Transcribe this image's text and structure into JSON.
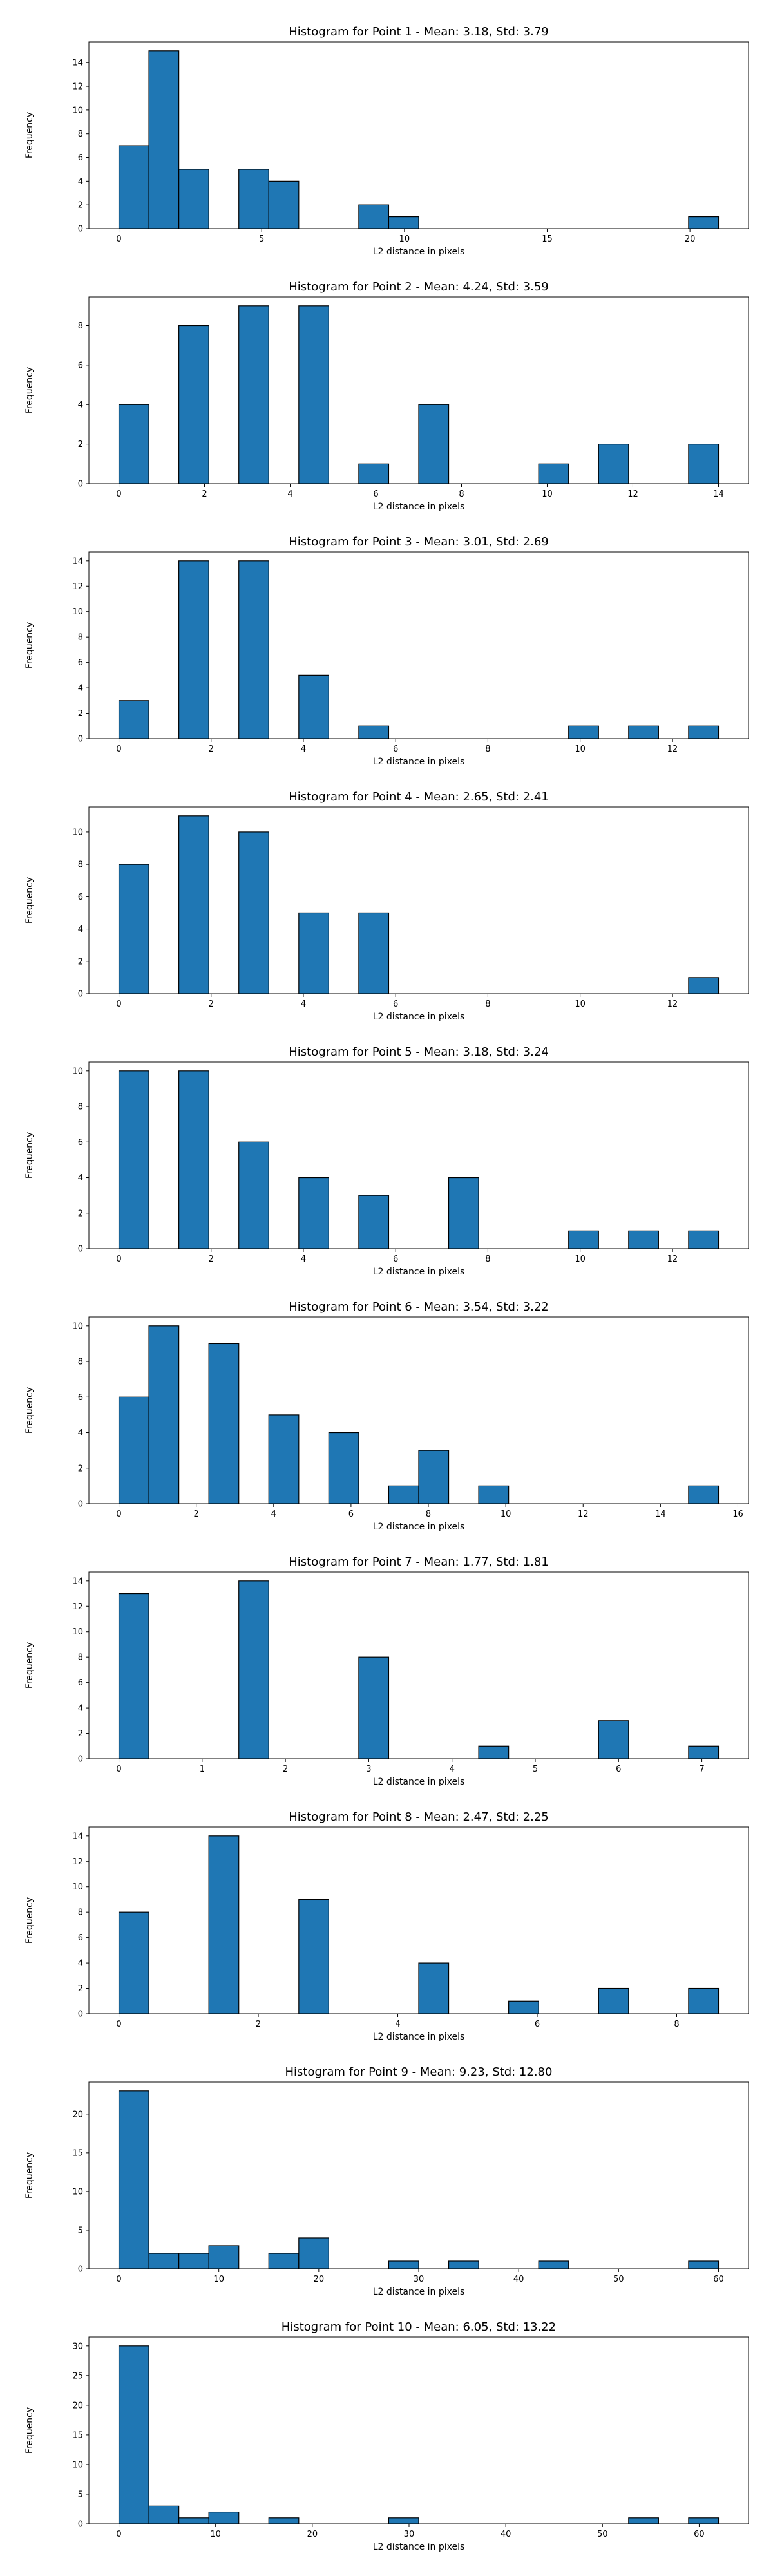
{
  "chart_data": [
    {
      "type": "bar",
      "title": "Histogram for Point 1 - Mean: 3.18, Std: 3.79",
      "xlabel": "L2 distance in pixels",
      "ylabel": "Frequency",
      "xlim": [
        -1.05,
        22.05
      ],
      "ylim": [
        0,
        15.75
      ],
      "xticks": [
        0,
        5,
        10,
        15,
        20
      ],
      "yticks": [
        0,
        2,
        4,
        6,
        8,
        10,
        12,
        14
      ],
      "bins": [
        {
          "x0": 0.0,
          "x1": 1.05,
          "count": 7
        },
        {
          "x0": 1.05,
          "x1": 2.1,
          "count": 15
        },
        {
          "x0": 2.1,
          "x1": 3.15,
          "count": 5
        },
        {
          "x0": 4.2,
          "x1": 5.25,
          "count": 5
        },
        {
          "x0": 5.25,
          "x1": 6.3,
          "count": 4
        },
        {
          "x0": 8.4,
          "x1": 9.45,
          "count": 2
        },
        {
          "x0": 9.45,
          "x1": 10.5,
          "count": 1
        },
        {
          "x0": 19.95,
          "x1": 21.0,
          "count": 1
        }
      ]
    },
    {
      "type": "bar",
      "title": "Histogram for Point 2 - Mean: 4.24, Std: 3.59",
      "xlabel": "L2 distance in pixels",
      "ylabel": "Frequency",
      "xlim": [
        -0.7,
        14.7
      ],
      "ylim": [
        0,
        9.45
      ],
      "xticks": [
        0,
        2,
        4,
        6,
        8,
        10,
        12,
        14
      ],
      "yticks": [
        0,
        2,
        4,
        6,
        8
      ],
      "bins": [
        {
          "x0": 0.0,
          "x1": 0.7,
          "count": 4
        },
        {
          "x0": 1.4,
          "x1": 2.1,
          "count": 8
        },
        {
          "x0": 2.8,
          "x1": 3.5,
          "count": 9
        },
        {
          "x0": 4.2,
          "x1": 4.9,
          "count": 9
        },
        {
          "x0": 5.6,
          "x1": 6.3,
          "count": 1
        },
        {
          "x0": 7.0,
          "x1": 7.7,
          "count": 4
        },
        {
          "x0": 9.8,
          "x1": 10.5,
          "count": 1
        },
        {
          "x0": 11.2,
          "x1": 11.9,
          "count": 2
        },
        {
          "x0": 13.3,
          "x1": 14.0,
          "count": 2
        }
      ]
    },
    {
      "type": "bar",
      "title": "Histogram for Point 3 - Mean: 3.01, Std: 2.69",
      "xlabel": "L2 distance in pixels",
      "ylabel": "Frequency",
      "xlim": [
        -0.65,
        13.65
      ],
      "ylim": [
        0,
        14.7
      ],
      "xticks": [
        0,
        2,
        4,
        6,
        8,
        10,
        12
      ],
      "yticks": [
        0,
        2,
        4,
        6,
        8,
        10,
        12,
        14
      ],
      "bins": [
        {
          "x0": 0.0,
          "x1": 0.65,
          "count": 3
        },
        {
          "x0": 1.3,
          "x1": 1.95,
          "count": 14
        },
        {
          "x0": 2.6,
          "x1": 3.25,
          "count": 14
        },
        {
          "x0": 3.9,
          "x1": 4.55,
          "count": 5
        },
        {
          "x0": 5.2,
          "x1": 5.85,
          "count": 1
        },
        {
          "x0": 9.75,
          "x1": 10.4,
          "count": 1
        },
        {
          "x0": 11.05,
          "x1": 11.7,
          "count": 1
        },
        {
          "x0": 12.35,
          "x1": 13.0,
          "count": 1
        }
      ]
    },
    {
      "type": "bar",
      "title": "Histogram for Point 4 - Mean: 2.65, Std: 2.41",
      "xlabel": "L2 distance in pixels",
      "ylabel": "Frequency",
      "xlim": [
        -0.65,
        13.65
      ],
      "ylim": [
        0,
        11.55
      ],
      "xticks": [
        0,
        2,
        4,
        6,
        8,
        10,
        12
      ],
      "yticks": [
        0,
        2,
        4,
        6,
        8,
        10
      ],
      "bins": [
        {
          "x0": 0.0,
          "x1": 0.65,
          "count": 8
        },
        {
          "x0": 1.3,
          "x1": 1.95,
          "count": 11
        },
        {
          "x0": 2.6,
          "x1": 3.25,
          "count": 10
        },
        {
          "x0": 3.9,
          "x1": 4.55,
          "count": 5
        },
        {
          "x0": 5.2,
          "x1": 5.85,
          "count": 5
        },
        {
          "x0": 12.35,
          "x1": 13.0,
          "count": 1
        }
      ]
    },
    {
      "type": "bar",
      "title": "Histogram for Point 5 - Mean: 3.18, Std: 3.24",
      "xlabel": "L2 distance in pixels",
      "ylabel": "Frequency",
      "xlim": [
        -0.65,
        13.65
      ],
      "ylim": [
        0,
        10.5
      ],
      "xticks": [
        0,
        2,
        4,
        6,
        8,
        10,
        12
      ],
      "yticks": [
        0,
        2,
        4,
        6,
        8,
        10
      ],
      "bins": [
        {
          "x0": 0.0,
          "x1": 0.65,
          "count": 10
        },
        {
          "x0": 1.3,
          "x1": 1.95,
          "count": 10
        },
        {
          "x0": 2.6,
          "x1": 3.25,
          "count": 6
        },
        {
          "x0": 3.9,
          "x1": 4.55,
          "count": 4
        },
        {
          "x0": 5.2,
          "x1": 5.85,
          "count": 3
        },
        {
          "x0": 7.15,
          "x1": 7.8,
          "count": 4
        },
        {
          "x0": 9.75,
          "x1": 10.4,
          "count": 1
        },
        {
          "x0": 11.05,
          "x1": 11.7,
          "count": 1
        },
        {
          "x0": 12.35,
          "x1": 13.0,
          "count": 1
        }
      ]
    },
    {
      "type": "bar",
      "title": "Histogram for Point 6 - Mean: 3.54, Std: 3.22",
      "xlabel": "L2 distance in pixels",
      "ylabel": "Frequency",
      "xlim": [
        -0.775,
        16.275
      ],
      "ylim": [
        0,
        10.5
      ],
      "xticks": [
        0,
        2,
        4,
        6,
        8,
        10,
        12,
        14,
        16
      ],
      "yticks": [
        0,
        2,
        4,
        6,
        8,
        10
      ],
      "bins": [
        {
          "x0": 0.0,
          "x1": 0.775,
          "count": 6
        },
        {
          "x0": 0.775,
          "x1": 1.55,
          "count": 10
        },
        {
          "x0": 2.325,
          "x1": 3.1,
          "count": 9
        },
        {
          "x0": 3.875,
          "x1": 4.65,
          "count": 5
        },
        {
          "x0": 5.425,
          "x1": 6.2,
          "count": 4
        },
        {
          "x0": 6.975,
          "x1": 7.75,
          "count": 1
        },
        {
          "x0": 7.75,
          "x1": 8.525,
          "count": 3
        },
        {
          "x0": 9.3,
          "x1": 10.075,
          "count": 1
        },
        {
          "x0": 14.725,
          "x1": 15.5,
          "count": 1
        }
      ]
    },
    {
      "type": "bar",
      "title": "Histogram for Point 7 - Mean: 1.77, Std: 1.81",
      "xlabel": "L2 distance in pixels",
      "ylabel": "Frequency",
      "xlim": [
        -0.36,
        7.56
      ],
      "ylim": [
        0,
        14.7
      ],
      "xticks": [
        0,
        1,
        2,
        3,
        4,
        5,
        6,
        7
      ],
      "yticks": [
        0,
        2,
        4,
        6,
        8,
        10,
        12,
        14
      ],
      "bins": [
        {
          "x0": 0.0,
          "x1": 0.36,
          "count": 13
        },
        {
          "x0": 1.44,
          "x1": 1.8,
          "count": 14
        },
        {
          "x0": 2.88,
          "x1": 3.24,
          "count": 8
        },
        {
          "x0": 4.32,
          "x1": 4.68,
          "count": 1
        },
        {
          "x0": 5.76,
          "x1": 6.12,
          "count": 3
        },
        {
          "x0": 6.84,
          "x1": 7.2,
          "count": 1
        }
      ]
    },
    {
      "type": "bar",
      "title": "Histogram for Point 8 - Mean: 2.47, Std: 2.25",
      "xlabel": "L2 distance in pixels",
      "ylabel": "Frequency",
      "xlim": [
        -0.43,
        9.03
      ],
      "ylim": [
        0,
        14.7
      ],
      "xticks": [
        0,
        2,
        4,
        6,
        8
      ],
      "yticks": [
        0,
        2,
        4,
        6,
        8,
        10,
        12,
        14
      ],
      "bins": [
        {
          "x0": 0.0,
          "x1": 0.43,
          "count": 8
        },
        {
          "x0": 1.29,
          "x1": 1.72,
          "count": 14
        },
        {
          "x0": 2.58,
          "x1": 3.01,
          "count": 9
        },
        {
          "x0": 4.3,
          "x1": 4.73,
          "count": 4
        },
        {
          "x0": 5.59,
          "x1": 6.02,
          "count": 1
        },
        {
          "x0": 6.88,
          "x1": 7.31,
          "count": 2
        },
        {
          "x0": 8.17,
          "x1": 8.6,
          "count": 2
        }
      ]
    },
    {
      "type": "bar",
      "title": "Histogram for Point 9 - Mean: 9.23, Std: 12.80",
      "xlabel": "L2 distance in pixels",
      "ylabel": "Frequency",
      "xlim": [
        -3.0,
        63.0
      ],
      "ylim": [
        0,
        24.15
      ],
      "xticks": [
        0,
        10,
        20,
        30,
        40,
        50,
        60
      ],
      "yticks": [
        0,
        5,
        10,
        15,
        20
      ],
      "bins": [
        {
          "x0": 0.0,
          "x1": 3.0,
          "count": 23
        },
        {
          "x0": 3.0,
          "x1": 6.0,
          "count": 2
        },
        {
          "x0": 6.0,
          "x1": 9.0,
          "count": 2
        },
        {
          "x0": 9.0,
          "x1": 12.0,
          "count": 3
        },
        {
          "x0": 15.0,
          "x1": 18.0,
          "count": 2
        },
        {
          "x0": 18.0,
          "x1": 21.0,
          "count": 4
        },
        {
          "x0": 27.0,
          "x1": 30.0,
          "count": 1
        },
        {
          "x0": 33.0,
          "x1": 36.0,
          "count": 1
        },
        {
          "x0": 42.0,
          "x1": 45.0,
          "count": 1
        },
        {
          "x0": 57.0,
          "x1": 60.0,
          "count": 1
        }
      ]
    },
    {
      "type": "bar",
      "title": "Histogram for Point 10 - Mean: 6.05, Std: 13.22",
      "xlabel": "L2 distance in pixels",
      "ylabel": "Frequency",
      "xlim": [
        -3.1,
        65.1
      ],
      "ylim": [
        0,
        31.5
      ],
      "xticks": [
        0,
        10,
        20,
        30,
        40,
        50,
        60
      ],
      "yticks": [
        0,
        5,
        10,
        15,
        20,
        25,
        30
      ],
      "bins": [
        {
          "x0": 0.0,
          "x1": 3.1,
          "count": 30
        },
        {
          "x0": 3.1,
          "x1": 6.2,
          "count": 3
        },
        {
          "x0": 6.2,
          "x1": 9.3,
          "count": 1
        },
        {
          "x0": 9.3,
          "x1": 12.4,
          "count": 2
        },
        {
          "x0": 15.5,
          "x1": 18.6,
          "count": 1
        },
        {
          "x0": 27.9,
          "x1": 31.0,
          "count": 1
        },
        {
          "x0": 52.7,
          "x1": 55.8,
          "count": 1
        },
        {
          "x0": 58.9,
          "x1": 62.0,
          "count": 1
        }
      ]
    }
  ]
}
